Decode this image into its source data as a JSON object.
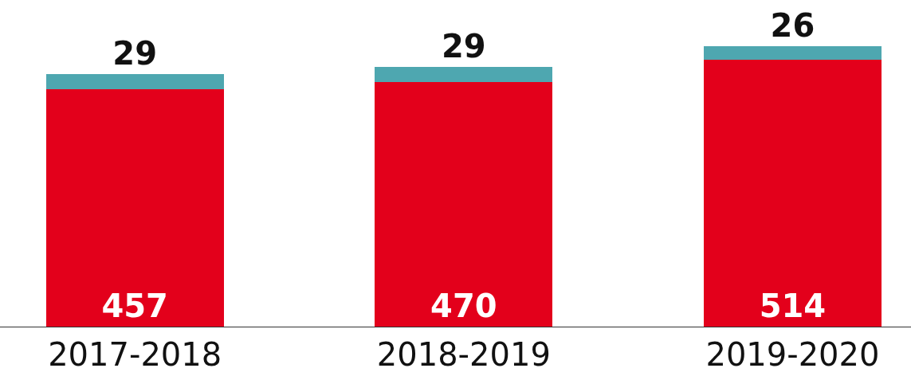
{
  "chart_data": {
    "type": "bar",
    "stacked": true,
    "categories": [
      "2017-2018",
      "2018-2019",
      "2019-2020"
    ],
    "series": [
      {
        "color": "#e3001b",
        "values": [
          457,
          470,
          514
        ]
      },
      {
        "color": "#4ea7b0",
        "values": [
          29,
          29,
          26
        ]
      }
    ],
    "data_labels": true
  }
}
